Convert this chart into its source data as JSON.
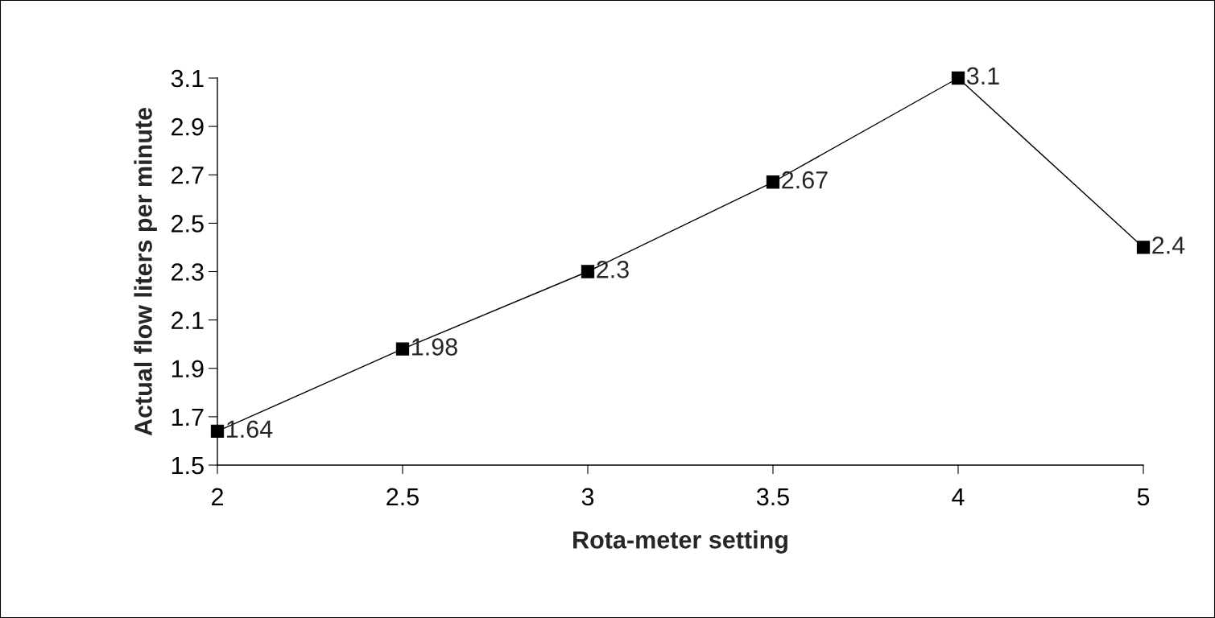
{
  "chart_data": {
    "type": "line",
    "xlabel": "Rota-meter setting",
    "ylabel": "Actual flow liters per minute",
    "categories": [
      "2",
      "2.5",
      "3",
      "3.5",
      "4",
      "5"
    ],
    "series": [
      {
        "color": "#000000",
        "values": [
          1.64,
          1.98,
          2.3,
          2.67,
          3.1,
          2.4
        ]
      }
    ],
    "ylim": [
      1.5,
      3.1
    ],
    "yticks": [
      1.5,
      1.7,
      1.9,
      2.1,
      2.3,
      2.5,
      2.7,
      2.9,
      3.1
    ],
    "marker": "square",
    "line_style": "solid",
    "data_labels": true,
    "grid": false
  }
}
